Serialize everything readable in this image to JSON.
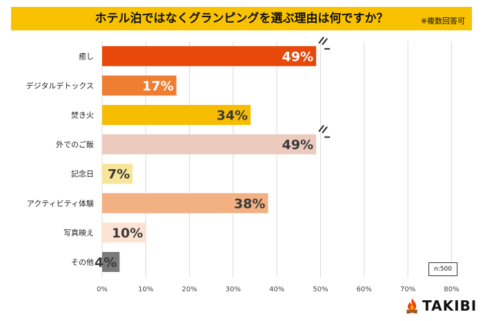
{
  "title": "ホテル泊ではなくグランピングを選ぶ理由は何ですか？",
  "note": "※複数回答可",
  "sample_size": "n:500",
  "brand": "TAKIBI",
  "chart_data": {
    "type": "bar",
    "orientation": "horizontal",
    "categories": [
      "癒し",
      "デジタルデトックス",
      "焚き火",
      "外でのご飯",
      "記念日",
      "アクティビティ体験",
      "写真映え",
      "その他"
    ],
    "values": [
      49,
      17,
      34,
      49,
      7,
      38,
      10,
      4
    ],
    "value_labels": [
      "49%",
      "17%",
      "34%",
      "49%",
      "7%",
      "38%",
      "10%",
      "4%"
    ],
    "bar_colors": [
      "#e8480a",
      "#ef7d32",
      "#f7bd00",
      "#eccabd",
      "#f8e59a",
      "#f3b183",
      "#fce3d4",
      "#7a7a7a"
    ],
    "label_colors": [
      "#ffffff",
      "#ffffff",
      "#3a3a3a",
      "#3a3a3a",
      "#3a3a3a",
      "#3a3a3a",
      "#3a3a3a",
      "#3a3a3a"
    ],
    "break_marks": [
      0,
      3
    ],
    "xlim": [
      0,
      80
    ],
    "xticks": [
      "0%",
      "10%",
      "20%",
      "30%",
      "40%",
      "50%",
      "60%",
      "70%",
      "80%"
    ],
    "grid": true,
    "xlabel": "",
    "ylabel": ""
  }
}
